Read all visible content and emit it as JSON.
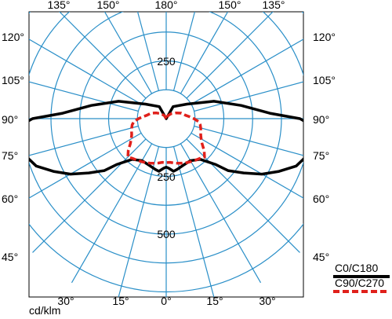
{
  "chart_data": {
    "type": "polar",
    "title": "",
    "unit_label": "cd/klm",
    "radial_labels": [
      "250",
      "250",
      "500"
    ],
    "radial_ticks": [
      250,
      500
    ],
    "r_max": 820,
    "grid": true,
    "angle_step_deg": 15,
    "tick_labels": {
      "top": [
        "135°",
        "150°",
        "180°",
        "150°",
        "135°"
      ],
      "left": [
        "120°",
        "105°",
        "90°",
        "75°",
        "60°",
        "45°"
      ],
      "right": [
        "120°",
        "105°",
        "90°",
        "75°",
        "60°",
        "45°"
      ],
      "bottom": [
        "30°",
        "15°",
        "0°",
        "15°",
        "30°"
      ]
    },
    "legend_position": "bottom-right",
    "series": [
      {
        "name": "C0/C180",
        "color": "#000000",
        "style": "solid",
        "gamma_deg": [
          0,
          3,
          8,
          12,
          20,
          30,
          40,
          47,
          50,
          55,
          60,
          65,
          70,
          75,
          80,
          84,
          88,
          90,
          93,
          100,
          110,
          125,
          150,
          180
        ],
        "intensity": [
          210,
          215,
          230,
          225,
          215,
          210,
          230,
          290,
          350,
          410,
          480,
          540,
          600,
          630,
          660,
          650,
          620,
          580,
          450,
          330,
          220,
          110,
          60,
          0
        ]
      },
      {
        "name": "C90/C270",
        "color": "#e0201b",
        "style": "dashed",
        "gamma_deg": [
          0,
          5,
          10,
          15,
          20,
          25,
          30,
          35,
          40,
          45,
          50,
          55,
          60,
          65,
          70,
          75,
          80,
          85,
          90,
          95,
          100,
          110,
          120,
          135,
          150,
          180
        ],
        "intensity": [
          190,
          190,
          195,
          200,
          205,
          210,
          215,
          220,
          225,
          235,
          215,
          190,
          175,
          165,
          160,
          155,
          150,
          140,
          120,
          100,
          85,
          70,
          50,
          30,
          15,
          0
        ]
      }
    ]
  }
}
